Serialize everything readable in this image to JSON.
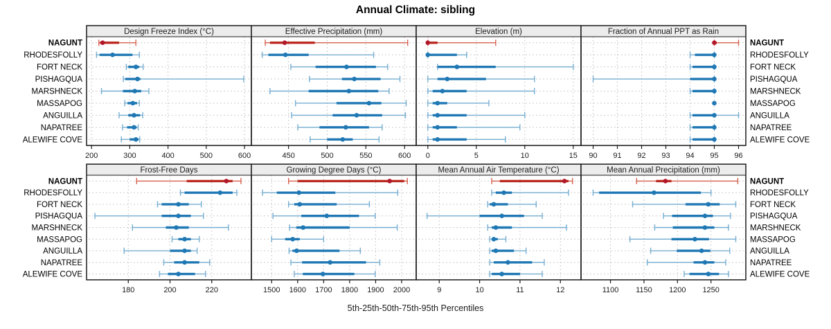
{
  "title": "Annual Climate: sibling",
  "axis_title": "5th-25th-50th-75th-95th Percentiles",
  "sites": [
    "NAGUNT",
    "RHODESFOLLY",
    "FORT NECK",
    "PISHAGQUA",
    "MARSHNECK",
    "MASSAPOG",
    "ANGUILLA",
    "NAPATREE",
    "ALEWIFE COVE"
  ],
  "highlight_site": "NAGUNT",
  "percentiles": [
    5,
    25,
    50,
    75,
    95
  ],
  "colors": {
    "normal": {
      "dot": "#1f78b4",
      "band": "#1f78b4",
      "whisker": "#74add1"
    },
    "highlight": {
      "dot": "#b2182b",
      "band": "#bb2a21",
      "whisker": "#d6604d"
    },
    "grid": "#cccccc",
    "panel_border": "#1a1a1a",
    "header_bg": "#ececec",
    "text": "#1a1a1a"
  },
  "chart_data": [
    {
      "type": "dot-interval",
      "title": "Design Freeze Index (°C)",
      "ticks": [
        200,
        300,
        400,
        500,
        600
      ],
      "xlim": [
        187,
        618
      ],
      "values": [
        [
          219,
          222,
          229,
          272,
          316
        ],
        [
          213,
          221,
          255,
          307,
          325
        ],
        [
          291,
          296,
          316,
          325,
          335
        ],
        [
          283,
          288,
          320,
          328,
          598
        ],
        [
          226,
          282,
          313,
          330,
          350
        ],
        [
          287,
          294,
          308,
          319,
          325
        ],
        [
          272,
          296,
          311,
          327,
          334
        ],
        [
          281,
          293,
          311,
          318,
          322
        ],
        [
          278,
          300,
          316,
          323,
          326
        ]
      ]
    },
    {
      "type": "dot-interval",
      "title": "Effective Precipitation (mm)",
      "ticks": [
        450,
        500,
        550,
        600
      ],
      "xlim": [
        402,
        615
      ],
      "values": [
        [
          420,
          426,
          445,
          484,
          604
        ],
        [
          416,
          424,
          446,
          476,
          560
        ],
        [
          453,
          485,
          525,
          563,
          578
        ],
        [
          477,
          519,
          535,
          569,
          594
        ],
        [
          426,
          476,
          528,
          566,
          580
        ],
        [
          459,
          512,
          554,
          570,
          602
        ],
        [
          454,
          507,
          538,
          571,
          601
        ],
        [
          462,
          490,
          524,
          554,
          571
        ],
        [
          478,
          500,
          520,
          533,
          567
        ]
      ]
    },
    {
      "type": "dot-interval",
      "title": "Elevation (m)",
      "ticks": [
        0,
        5,
        10,
        15
      ],
      "xlim": [
        -1.2,
        15.8
      ],
      "values": [
        [
          0,
          0,
          0,
          1,
          7
        ],
        [
          0,
          0,
          0,
          3,
          4
        ],
        [
          1,
          1,
          3,
          7,
          15
        ],
        [
          0,
          1,
          2,
          6,
          11
        ],
        [
          0,
          0.5,
          1.5,
          4,
          11
        ],
        [
          0,
          0.5,
          1,
          2,
          6.3
        ],
        [
          0,
          0.5,
          1,
          4,
          10
        ],
        [
          0,
          0.5,
          1,
          3,
          9.5
        ],
        [
          0,
          0.5,
          1,
          4,
          8
        ]
      ]
    },
    {
      "type": "dot-interval",
      "title": "Fraction of Annual PPT as Rain",
      "ticks": [
        90,
        91,
        92,
        93,
        94,
        95,
        96
      ],
      "xlim": [
        89.5,
        96.3
      ],
      "values": [
        [
          95,
          95,
          95,
          95.1,
          96
        ],
        [
          94,
          94.2,
          95,
          95,
          95
        ],
        [
          94,
          94.1,
          95,
          95,
          95
        ],
        [
          90,
          94,
          95,
          95,
          95
        ],
        [
          94,
          94.1,
          95,
          95,
          95
        ],
        [
          95,
          95,
          95,
          95,
          95
        ],
        [
          94,
          94.1,
          95,
          95,
          96
        ],
        [
          94,
          94.1,
          95,
          95,
          95
        ],
        [
          94,
          94.1,
          95,
          95,
          95
        ]
      ]
    },
    {
      "type": "dot-interval",
      "title": "Frost-Free Days",
      "ticks": [
        180,
        200,
        220
      ],
      "xlim": [
        160,
        239
      ],
      "values": [
        [
          184,
          208,
          227,
          230,
          234
        ],
        [
          205,
          207,
          224,
          230,
          232
        ],
        [
          194,
          196,
          204,
          209,
          215
        ],
        [
          164,
          196,
          204,
          210,
          216
        ],
        [
          182,
          198,
          203,
          209,
          228
        ],
        [
          201,
          204,
          207,
          210,
          214
        ],
        [
          178,
          200,
          207,
          210,
          213
        ],
        [
          197,
          202,
          207,
          214,
          219
        ],
        [
          195,
          199,
          204,
          212,
          217
        ]
      ]
    },
    {
      "type": "dot-interval",
      "title": "Growing Degree Days (°C)",
      "ticks": [
        1500,
        1600,
        1700,
        1800,
        1900,
        2000
      ],
      "xlim": [
        1422,
        2056
      ],
      "values": [
        [
          1565,
          1600,
          1954,
          2010,
          2022
        ],
        [
          1465,
          1520,
          1605,
          1745,
          1985
        ],
        [
          1565,
          1587,
          1608,
          1750,
          1876
        ],
        [
          1505,
          1614,
          1712,
          1836,
          1898
        ],
        [
          1569,
          1595,
          1621,
          1800,
          1983
        ],
        [
          1500,
          1552,
          1581,
          1608,
          1700
        ],
        [
          1567,
          1580,
          1596,
          1761,
          1841
        ],
        [
          1574,
          1617,
          1725,
          1863,
          1916
        ],
        [
          1587,
          1620,
          1697,
          1818,
          1898
        ]
      ]
    },
    {
      "type": "dot-interval",
      "title": "Mean Annual Air Temperature (°C)",
      "ticks": [
        9,
        10,
        11,
        12
      ],
      "xlim": [
        8.43,
        12.51
      ],
      "values": [
        [
          10.3,
          10.5,
          12.1,
          12.2,
          12.3
        ],
        [
          10.3,
          10.4,
          10.6,
          10.8,
          12.2
        ],
        [
          10.2,
          10.25,
          10.35,
          10.7,
          11.4
        ],
        [
          8.7,
          10.0,
          10.55,
          11.1,
          11.55
        ],
        [
          10.2,
          10.3,
          10.4,
          10.8,
          12.15
        ],
        [
          10.25,
          10.3,
          10.35,
          10.45,
          10.65
        ],
        [
          10.25,
          10.3,
          10.4,
          10.85,
          11.15
        ],
        [
          10.25,
          10.35,
          10.7,
          11.3,
          11.6
        ],
        [
          10.25,
          10.3,
          10.55,
          11.0,
          11.55
        ]
      ]
    },
    {
      "type": "dot-interval",
      "title": "Mean Annual Precipitation (mm)",
      "ticks": [
        1100,
        1150,
        1200,
        1250
      ],
      "xlim": [
        1056,
        1302
      ],
      "values": [
        [
          1139,
          1168,
          1182,
          1191,
          1290
        ],
        [
          1074,
          1083,
          1165,
          1235,
          1250
        ],
        [
          1133,
          1212,
          1246,
          1263,
          1287
        ],
        [
          1179,
          1192,
          1241,
          1253,
          1279
        ],
        [
          1166,
          1193,
          1241,
          1255,
          1276
        ],
        [
          1129,
          1191,
          1226,
          1247,
          1287
        ],
        [
          1160,
          1199,
          1236,
          1249,
          1278
        ],
        [
          1155,
          1224,
          1241,
          1255,
          1272
        ],
        [
          1210,
          1218,
          1246,
          1262,
          1276
        ]
      ]
    }
  ]
}
